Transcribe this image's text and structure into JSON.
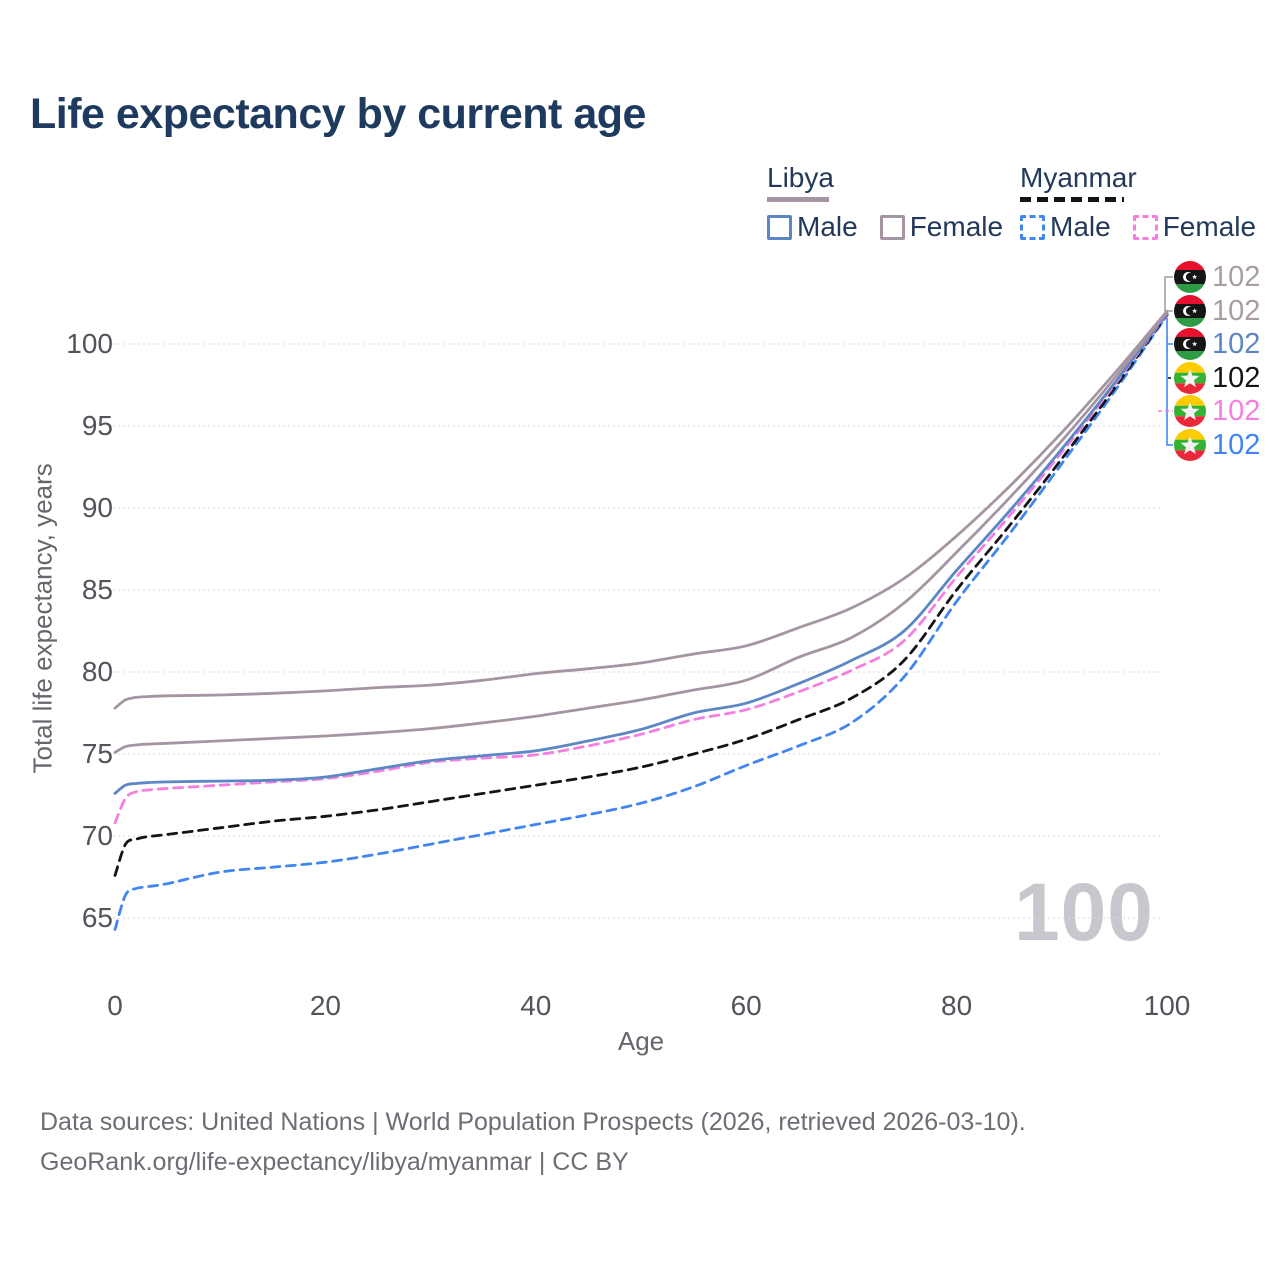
{
  "page": {
    "title": "Life expectancy by current age"
  },
  "legend": {
    "libya": {
      "label": "Libya",
      "male": "Male",
      "female": "Female"
    },
    "myanmar": {
      "label": "Myanmar",
      "male": "Male",
      "female": "Female"
    }
  },
  "watermark": "100",
  "footer": {
    "line1": "Data sources: United Nations | World Population Prospects (2026, retrieved 2026-03-10).",
    "line2": "GeoRank.org/life-expectancy/libya/myanmar | CC BY"
  },
  "colors": {
    "title_navy": "#1e3a5e",
    "libya_solid_gray": "#a595a3",
    "libya_male_blue": "#5b87c5",
    "myanmar_male_blue": "#4186f0",
    "myanmar_female_pink": "#f57fe0",
    "myanmar_total_black": "#141414",
    "gridline": "#d8d8de",
    "axis_text": "#53535b",
    "watermark_gray": "#c7c7cd"
  },
  "chart_data": {
    "type": "line",
    "title": "Life expectancy by current age",
    "xlabel": "Age",
    "ylabel": "Total life expectancy, years",
    "xlim": [
      0,
      100
    ],
    "ylim": [
      63,
      103.5
    ],
    "x_ticks": [
      0,
      20,
      40,
      60,
      80,
      100
    ],
    "y_ticks": [
      65,
      70,
      75,
      80,
      85,
      90,
      95,
      100
    ],
    "grid": "horizontal-only",
    "legend_position": "top-right",
    "hovered_age": "100",
    "x": [
      0,
      1,
      2,
      3,
      5,
      10,
      15,
      20,
      25,
      30,
      35,
      40,
      45,
      50,
      55,
      60,
      65,
      70,
      75,
      80,
      85,
      90,
      95,
      100
    ],
    "series": [
      {
        "id": "myanmar_male",
        "name": "Myanmar Male",
        "country": "Myanmar",
        "flag": "myanmar",
        "style": "dashed",
        "color": "#4186f0",
        "values": [
          64.3,
          66.4,
          66.8,
          66.9,
          67.1,
          67.8,
          68.1,
          68.4,
          68.9,
          69.5,
          70.1,
          70.7,
          71.3,
          72.0,
          73.0,
          74.3,
          75.5,
          76.9,
          79.7,
          84.3,
          88.4,
          92.7,
          97.1,
          101.75
        ]
      },
      {
        "id": "myanmar_total",
        "name": "Myanmar Both sexes",
        "country": "Myanmar",
        "flag": "myanmar",
        "style": "dashed",
        "color": "#141414",
        "values": [
          67.6,
          69.5,
          69.8,
          69.95,
          70.1,
          70.5,
          70.9,
          71.2,
          71.6,
          72.1,
          72.6,
          73.1,
          73.6,
          74.2,
          75.0,
          75.9,
          77.1,
          78.4,
          80.7,
          85.0,
          88.9,
          93.0,
          97.3,
          101.8
        ]
      },
      {
        "id": "myanmar_female",
        "name": "Myanmar Female",
        "country": "Myanmar",
        "flag": "myanmar",
        "style": "dashed",
        "color": "#f57fe0",
        "values": [
          70.8,
          72.3,
          72.7,
          72.8,
          72.9,
          73.1,
          73.3,
          73.5,
          73.95,
          74.5,
          74.75,
          74.95,
          75.5,
          76.2,
          77.1,
          77.7,
          78.8,
          80.1,
          81.9,
          85.8,
          89.5,
          93.4,
          97.5,
          101.85
        ]
      },
      {
        "id": "libya_male",
        "name": "Libya Male",
        "country": "Libya",
        "flag": "libya",
        "style": "solid",
        "color": "#5b87c5",
        "values": [
          72.6,
          73.1,
          73.2,
          73.25,
          73.3,
          73.35,
          73.4,
          73.6,
          74.1,
          74.6,
          74.9,
          75.2,
          75.8,
          76.5,
          77.5,
          78.1,
          79.3,
          80.7,
          82.5,
          86.2,
          89.8,
          93.6,
          97.6,
          101.9
        ]
      },
      {
        "id": "libya_total",
        "name": "Libya Both sexes",
        "country": "Libya",
        "flag": "libya",
        "style": "solid",
        "color": "#a595a3",
        "values": [
          75.1,
          75.45,
          75.55,
          75.6,
          75.65,
          75.8,
          75.95,
          76.1,
          76.3,
          76.55,
          76.9,
          77.3,
          77.8,
          78.3,
          78.9,
          79.5,
          80.9,
          82.1,
          84.2,
          87.3,
          90.6,
          94.1,
          97.9,
          101.95
        ]
      },
      {
        "id": "libya_female",
        "name": "Libya Female",
        "country": "Libya",
        "flag": "libya",
        "style": "solid",
        "color": "#a595a3",
        "values": [
          77.8,
          78.3,
          78.45,
          78.5,
          78.55,
          78.6,
          78.7,
          78.85,
          79.05,
          79.2,
          79.5,
          79.9,
          80.2,
          80.55,
          81.1,
          81.6,
          82.7,
          83.9,
          85.7,
          88.3,
          91.3,
          94.6,
          98.2,
          102.0
        ]
      }
    ],
    "end_labels": [
      {
        "flag": "libya",
        "series": "libya_female",
        "value": "102",
        "color": "#a99ca7"
      },
      {
        "flag": "libya",
        "series": "libya_total",
        "value": "102",
        "color": "#a99ca7"
      },
      {
        "flag": "libya",
        "series": "libya_male",
        "value": "102",
        "color": "#5b87c5"
      },
      {
        "flag": "myanmar",
        "series": "myanmar_total",
        "value": "102",
        "color": "#141414"
      },
      {
        "flag": "myanmar",
        "series": "myanmar_female",
        "value": "102",
        "color": "#f57fe0"
      },
      {
        "flag": "myanmar",
        "series": "myanmar_male",
        "value": "102",
        "color": "#4186f0"
      }
    ]
  }
}
